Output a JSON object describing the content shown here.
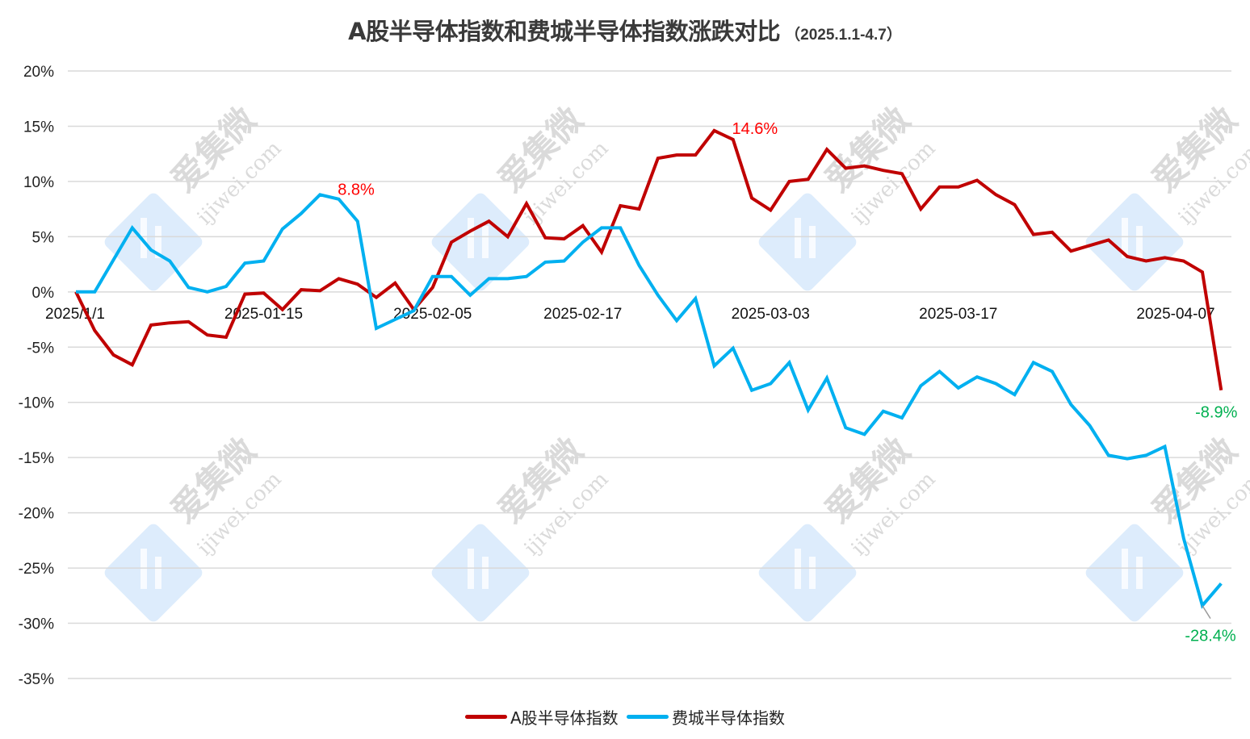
{
  "chart_data": {
    "type": "line",
    "title": "A股半导体指数和费城半导体指数涨跌对比",
    "subtitle": "（2025.1.1-4.7）",
    "xlabel": "",
    "ylabel": "",
    "ylim": [
      -0.35,
      0.2
    ],
    "yticks": [
      "20%",
      "15%",
      "10%",
      "5%",
      "0%",
      "-5%",
      "-10%",
      "-15%",
      "-20%",
      "-25%",
      "-30%",
      "-35%"
    ],
    "xtick_labels": [
      {
        "label": "2025/1/1",
        "index": 0
      },
      {
        "label": "2025-01-15",
        "index": 10
      },
      {
        "label": "2025-02-05",
        "index": 19
      },
      {
        "label": "2025-02-17",
        "index": 27
      },
      {
        "label": "2025-03-03",
        "index": 37
      },
      {
        "label": "2025-03-17",
        "index": 47
      },
      {
        "label": "2025-04-07",
        "index": 61
      }
    ],
    "grid": true,
    "legend_position": "bottom",
    "series": [
      {
        "name": "A股半导体指数",
        "color": "#C00000",
        "values": [
          0.0,
          -3.5,
          -5.7,
          -6.6,
          -3.0,
          -2.8,
          -2.7,
          -3.9,
          -4.1,
          -0.2,
          -0.1,
          -1.6,
          0.2,
          0.1,
          1.2,
          0.7,
          -0.5,
          0.8,
          -1.6,
          0.4,
          4.5,
          5.5,
          6.4,
          5.0,
          8.0,
          4.9,
          4.8,
          6.0,
          3.6,
          7.8,
          7.5,
          12.1,
          12.4,
          12.4,
          14.6,
          13.8,
          8.5,
          7.4,
          10.0,
          10.2,
          12.9,
          11.2,
          11.4,
          11.0,
          10.7,
          7.5,
          9.5,
          9.5,
          10.1,
          8.8,
          7.9,
          5.2,
          5.4,
          3.7,
          4.2,
          4.7,
          3.2,
          2.8,
          3.1,
          2.8,
          1.8,
          -8.9
        ]
      },
      {
        "name": "费城半导体指数",
        "color": "#00B0F0",
        "values": [
          0.0,
          0.0,
          2.9,
          5.8,
          3.8,
          2.8,
          0.4,
          0.0,
          0.5,
          2.6,
          2.8,
          5.7,
          7.1,
          8.8,
          8.4,
          6.4,
          -3.3,
          -2.5,
          -1.7,
          1.4,
          1.4,
          -0.3,
          1.2,
          1.2,
          1.4,
          2.7,
          2.8,
          4.5,
          5.8,
          5.8,
          2.4,
          -0.3,
          -2.6,
          -0.6,
          -6.7,
          -5.1,
          -8.9,
          -8.3,
          -6.4,
          -10.7,
          -7.8,
          -12.3,
          -12.9,
          -10.8,
          -11.4,
          -8.5,
          -7.2,
          -8.7,
          -7.7,
          -8.3,
          -9.3,
          -6.4,
          -7.2,
          -10.2,
          -12.1,
          -14.8,
          -15.1,
          -14.8,
          -14.0,
          -22.3,
          -28.4,
          -26.4
        ]
      }
    ],
    "annotations": [
      {
        "text": "8.8%",
        "series": "费城半导体指数",
        "index": 13,
        "color": "#FF0000"
      },
      {
        "text": "14.6%",
        "series": "A股半导体指数",
        "index": 34,
        "color": "#FF0000"
      },
      {
        "text": "-8.9%",
        "series": "A股半导体指数",
        "index": 61,
        "color": "#00B050"
      },
      {
        "text": "-28.4%",
        "series": "费城半导体指数",
        "index": 60,
        "color": "#00B050"
      }
    ],
    "watermark": {
      "text": "爱集微",
      "url": "ijiwei.com"
    }
  }
}
